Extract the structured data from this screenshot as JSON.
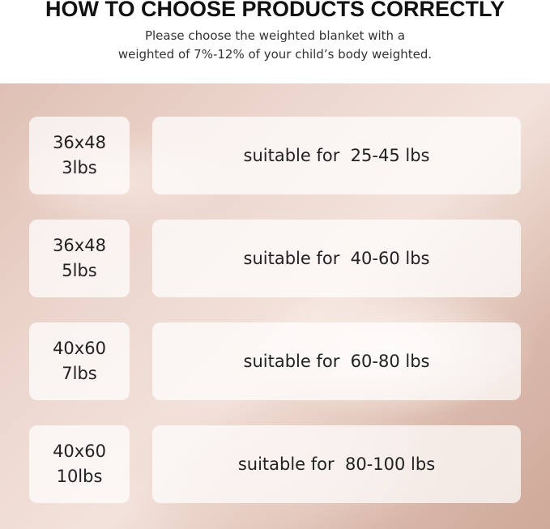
{
  "header": {
    "title": "HOW TO CHOOSE PRODUCTS CORRECTLY",
    "subtitle_line1": "Please choose the weighted blanket with a",
    "subtitle_line2": "weighted of 7%-12% of your child’s body weighted."
  },
  "rows": [
    {
      "size": "36x48",
      "weight": "3lbs",
      "suitable": "suitable for  25-45 lbs"
    },
    {
      "size": "36x48",
      "weight": "5lbs",
      "suitable": "suitable for  40-60 lbs"
    },
    {
      "size": "40x60",
      "weight": "7lbs",
      "suitable": "suitable for  60-80 lbs"
    },
    {
      "size": "40x60",
      "weight": "10lbs",
      "suitable": "suitable for  80-100 lbs"
    }
  ]
}
